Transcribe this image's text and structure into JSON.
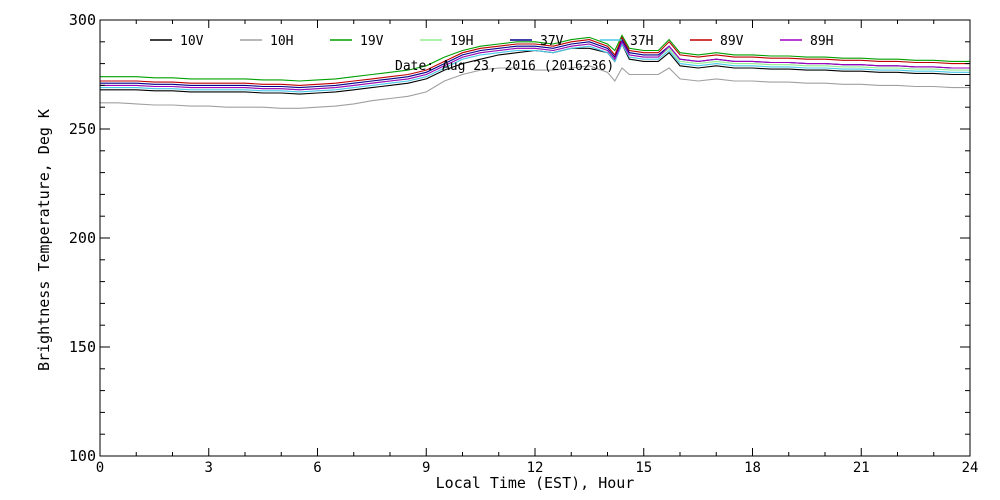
{
  "chart_data": {
    "type": "line",
    "title": "",
    "annotation": "Date: Aug 23, 2016 (2016236)",
    "xlabel": "Local Time (EST), Hour",
    "ylabel": "Brightness Temperature, Deg K",
    "xlim": [
      0,
      24
    ],
    "ylim": [
      100,
      300
    ],
    "xticks": [
      0,
      3,
      6,
      9,
      12,
      15,
      18,
      21,
      24
    ],
    "yticks": [
      100,
      150,
      200,
      250,
      300
    ],
    "grid": false,
    "legend_placement": "top",
    "x": [
      0,
      0.5,
      1,
      1.5,
      2,
      2.5,
      3,
      3.5,
      4,
      4.5,
      5,
      5.5,
      6,
      6.5,
      7,
      7.5,
      8,
      8.5,
      9,
      9.5,
      10,
      10.5,
      11,
      11.5,
      12,
      12.5,
      13,
      13.5,
      14,
      14.2,
      14.4,
      14.6,
      15,
      15.4,
      15.7,
      16,
      16.5,
      17,
      17.5,
      18,
      18.5,
      19,
      19.5,
      20,
      20.5,
      21,
      21.5,
      22,
      22.5,
      23,
      23.5,
      24
    ],
    "series": [
      {
        "name": "10V",
        "color": "#000000",
        "values": [
          268,
          268,
          268,
          267.5,
          267.5,
          267,
          267,
          267,
          267,
          266.5,
          266.5,
          266,
          266.5,
          267,
          268,
          269,
          270,
          271,
          273,
          277,
          280,
          282,
          284,
          285,
          286,
          285,
          287,
          287,
          285,
          281,
          289,
          282,
          281,
          281,
          285,
          279,
          278,
          279,
          278,
          278,
          277.5,
          277.5,
          277,
          277,
          276.5,
          276.5,
          276,
          276,
          275.5,
          275.5,
          275,
          275
        ]
      },
      {
        "name": "10H",
        "color": "#a0a0a0",
        "values": [
          262,
          262,
          261.5,
          261,
          261,
          260.5,
          260.5,
          260,
          260,
          260,
          259.5,
          259.5,
          260,
          260.5,
          261.5,
          263,
          264,
          265,
          267,
          272,
          275,
          277,
          278,
          278,
          277,
          277,
          278,
          279,
          276,
          272,
          278,
          275,
          275,
          275,
          278,
          273,
          272,
          273,
          272,
          272,
          271.5,
          271.5,
          271,
          271,
          270.5,
          270.5,
          270,
          270,
          269.5,
          269.5,
          269,
          269
        ]
      },
      {
        "name": "19V",
        "color": "#00a000",
        "values": [
          274,
          274,
          274,
          273.5,
          273.5,
          273,
          273,
          273,
          273,
          272.5,
          272.5,
          272,
          272.5,
          273,
          274,
          275,
          276,
          277,
          279,
          283,
          286,
          288,
          289,
          290,
          290,
          289,
          291,
          292,
          289,
          286,
          293,
          287,
          286,
          286,
          291,
          285,
          284,
          285,
          284,
          284,
          283.5,
          283.5,
          283,
          283,
          282.5,
          282.5,
          282,
          282,
          281.5,
          281.5,
          281,
          281
        ]
      },
      {
        "name": "19H",
        "color": "#90ee90",
        "values": [
          270,
          270,
          270,
          269.5,
          269.5,
          269,
          269,
          269,
          269,
          268.5,
          268.5,
          268,
          268.5,
          269,
          270,
          271,
          272,
          273,
          275,
          279,
          283,
          285,
          286,
          287,
          287,
          286,
          288,
          289,
          286,
          282,
          290,
          284,
          283,
          283,
          287,
          281,
          280,
          281,
          280,
          280,
          279.5,
          279.5,
          279,
          279,
          278.5,
          278.5,
          278,
          278,
          277.5,
          277.5,
          277,
          277
        ]
      },
      {
        "name": "37V",
        "color": "#00008b",
        "values": [
          271,
          271,
          271,
          270.5,
          270.5,
          270,
          270,
          270,
          270,
          269.5,
          269.5,
          269,
          269.5,
          270,
          271,
          272,
          273,
          274,
          276,
          280,
          284,
          286,
          287,
          288,
          288,
          287,
          289,
          290,
          287,
          283,
          291,
          285,
          284,
          284,
          288,
          282,
          281,
          282,
          281,
          281,
          280.5,
          280.5,
          280,
          280,
          279.5,
          279.5,
          279,
          279,
          278.5,
          278.5,
          278,
          278
        ]
      },
      {
        "name": "37H",
        "color": "#48c8e8",
        "values": [
          269,
          269,
          269,
          268.5,
          268.5,
          268,
          268,
          268,
          268,
          267.5,
          267.5,
          267,
          267.5,
          268,
          269,
          270,
          271,
          272,
          274,
          278,
          282,
          284,
          285,
          286,
          286,
          285,
          287,
          288,
          285,
          281,
          289,
          283,
          282,
          282,
          286,
          280,
          279,
          280,
          279,
          279,
          278.5,
          278.5,
          278,
          278,
          277.5,
          277.5,
          277,
          277,
          276.5,
          276.5,
          276,
          276
        ]
      },
      {
        "name": "89V",
        "color": "#c00000",
        "values": [
          272,
          272,
          272,
          271.5,
          271.5,
          271,
          271,
          271,
          271,
          270.5,
          270.5,
          270,
          270.5,
          271,
          272,
          273,
          274,
          275,
          277,
          281,
          285,
          287,
          288,
          289,
          289,
          288,
          290,
          291,
          288,
          284,
          292,
          286,
          285,
          285,
          290,
          284,
          283,
          284,
          283,
          283,
          282.5,
          282.5,
          282,
          282,
          281.5,
          281.5,
          281,
          281,
          280.5,
          280.5,
          280,
          280
        ]
      },
      {
        "name": "89H",
        "color": "#a000c0",
        "values": [
          270,
          270,
          270,
          269.5,
          269.5,
          269,
          269,
          269,
          269,
          268.5,
          268.5,
          268,
          268.5,
          269,
          270,
          271,
          272,
          273,
          275,
          279,
          283,
          285,
          286,
          287,
          287,
          286,
          288,
          289,
          286,
          282,
          290,
          284,
          283,
          283,
          288,
          282,
          281,
          282,
          281,
          281,
          280.5,
          280.5,
          280,
          280,
          279.5,
          279.5,
          279,
          279,
          278.5,
          278.5,
          278,
          278
        ]
      }
    ]
  }
}
